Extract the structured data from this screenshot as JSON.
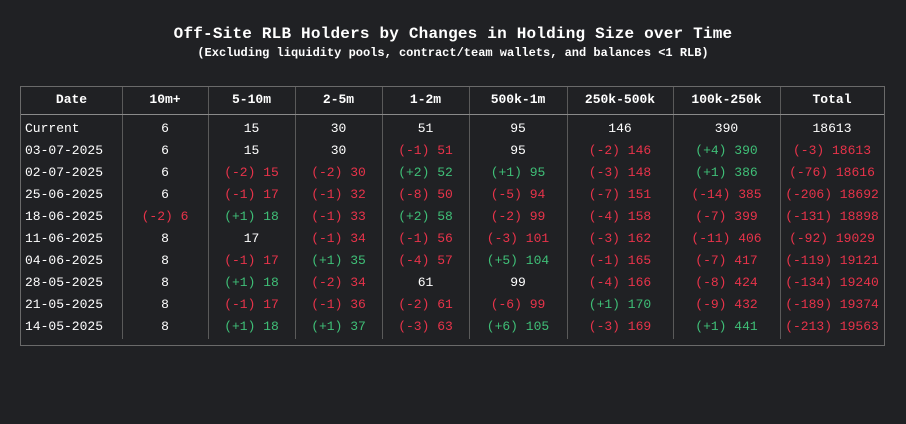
{
  "chart_data": {
    "type": "table",
    "title": "Off-Site RLB Holders by Changes in Holding Size over Time",
    "subtitle": "(Excluding liquidity pools, contract/team wallets, and balances <1 RLB)",
    "columns": [
      "Date",
      "10m+",
      "5-10m",
      "2-5m",
      "1-2m",
      "500k-1m",
      "250k-500k",
      "100k-250k",
      "Total"
    ],
    "rows": [
      {
        "date": "Current",
        "cells": [
          "6",
          "15",
          "30",
          "51",
          "95",
          "146",
          "390",
          "18613"
        ]
      },
      {
        "date": "03-07-2025",
        "cells": [
          "6",
          "15",
          "30",
          "(-1) 51",
          "95",
          "(-2) 146",
          "(+4) 390",
          "(-3) 18613"
        ]
      },
      {
        "date": "02-07-2025",
        "cells": [
          "6",
          "(-2) 15",
          "(-2) 30",
          "(+2) 52",
          "(+1) 95",
          "(-3) 148",
          "(+1) 386",
          "(-76) 18616"
        ]
      },
      {
        "date": "25-06-2025",
        "cells": [
          "6",
          "(-1) 17",
          "(-1) 32",
          "(-8) 50",
          "(-5) 94",
          "(-7) 151",
          "(-14) 385",
          "(-206) 18692"
        ]
      },
      {
        "date": "18-06-2025",
        "cells": [
          "(-2) 6",
          "(+1) 18",
          "(-1) 33",
          "(+2) 58",
          "(-2) 99",
          "(-4) 158",
          "(-7) 399",
          "(-131) 18898"
        ]
      },
      {
        "date": "11-06-2025",
        "cells": [
          "8",
          "17",
          "(-1) 34",
          "(-1) 56",
          "(-3) 101",
          "(-3) 162",
          "(-11) 406",
          "(-92) 19029"
        ]
      },
      {
        "date": "04-06-2025",
        "cells": [
          "8",
          "(-1) 17",
          "(+1) 35",
          "(-4) 57",
          "(+5) 104",
          "(-1) 165",
          "(-7) 417",
          "(-119) 19121"
        ]
      },
      {
        "date": "28-05-2025",
        "cells": [
          "8",
          "(+1) 18",
          "(-2) 34",
          "61",
          "99",
          "(-4) 166",
          "(-8) 424",
          "(-134) 19240"
        ]
      },
      {
        "date": "21-05-2025",
        "cells": [
          "8",
          "(-1) 17",
          "(-1) 36",
          "(-2) 61",
          "(-6) 99",
          "(+1) 170",
          "(-9) 432",
          "(-189) 19374"
        ]
      },
      {
        "date": "14-05-2025",
        "cells": [
          "8",
          "(+1) 18",
          "(+1) 37",
          "(-3) 63",
          "(+6) 105",
          "(-3) 169",
          "(+1) 441",
          "(-213) 19563"
        ]
      }
    ]
  },
  "colors": {
    "background": "#202124",
    "negative": "#e8334a",
    "positive": "#3fbf77",
    "neutral": "#ffffff",
    "border": "#6a6a6a"
  }
}
